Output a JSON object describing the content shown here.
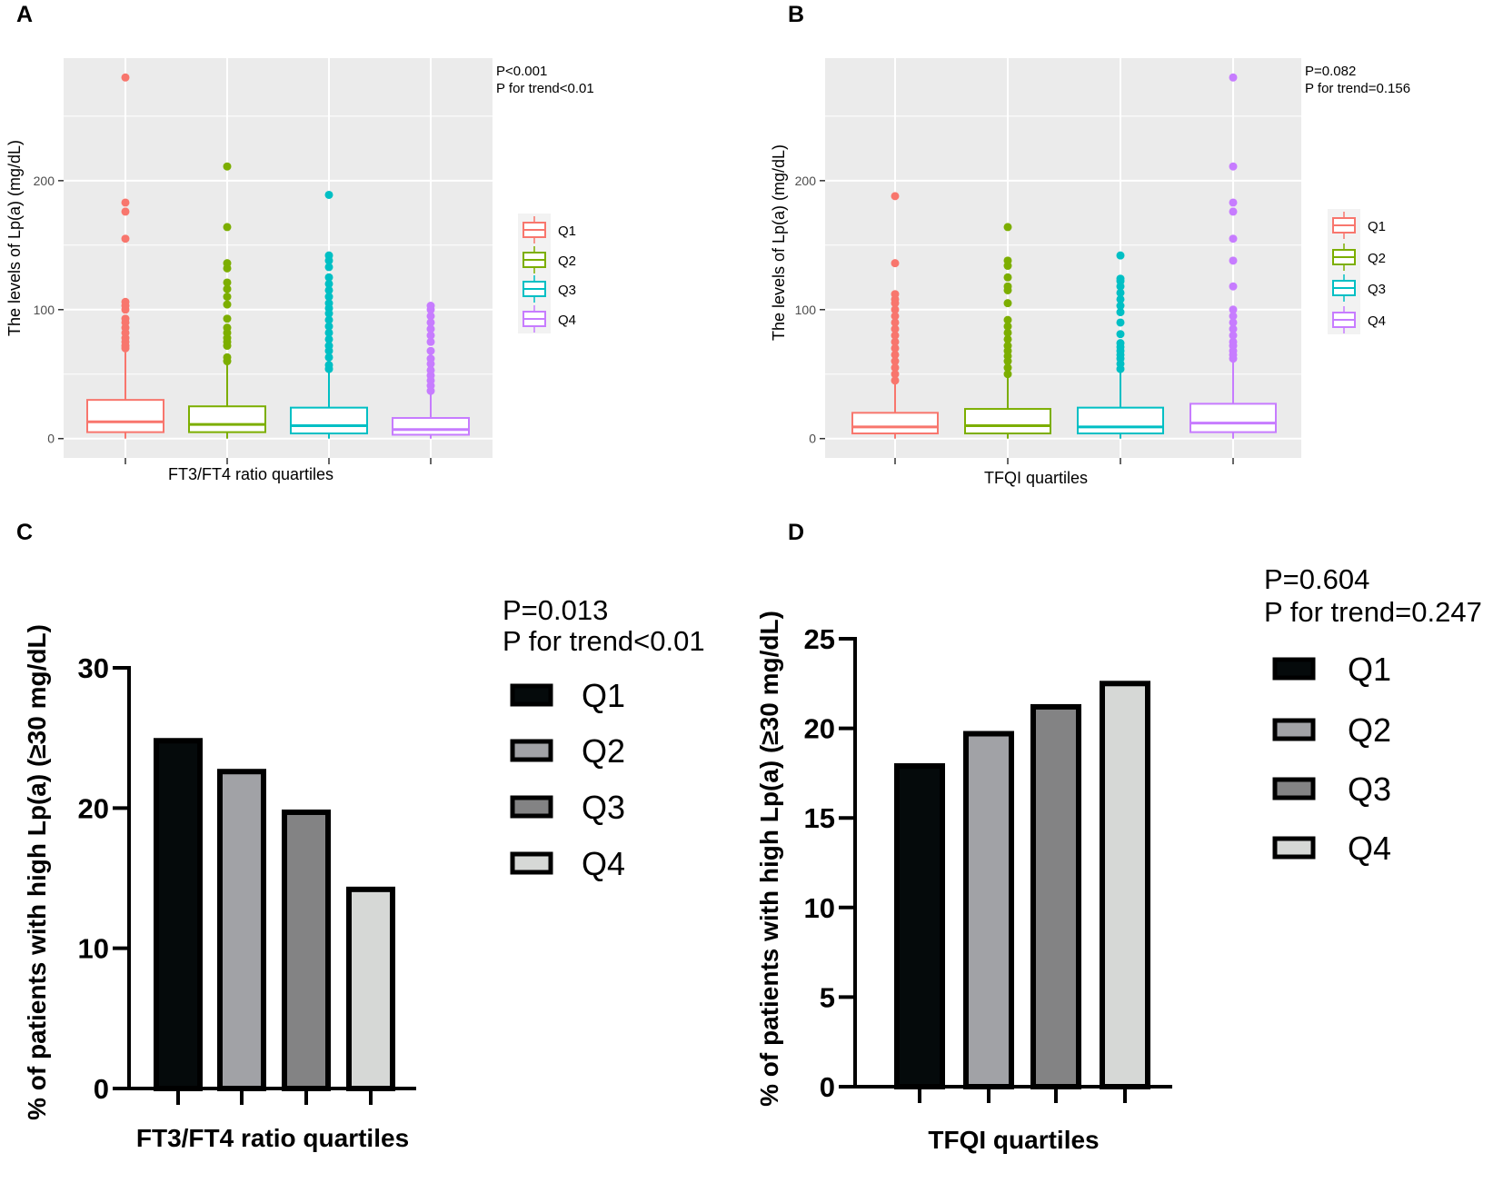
{
  "chart_data": [
    {
      "panel": "A",
      "type": "box",
      "xlabel": "FT3/FT4 ratio quartiles",
      "ylabel": "The levels of Lp(a) (mg/dL)",
      "ylim": [
        -15,
        295
      ],
      "yticks": [
        0,
        100,
        200
      ],
      "grid": true,
      "legend_position": "right",
      "stats": [
        "P<0.001",
        "P for trend<0.01"
      ],
      "series": [
        {
          "name": "Q1",
          "color": "#F8766D",
          "q1": 5,
          "median": 13,
          "q3": 30,
          "whisker_low": 0,
          "whisker_high": 67,
          "outliers": [
            70,
            72,
            75,
            78,
            82,
            86,
            90,
            93,
            100,
            103,
            106,
            155,
            176,
            183,
            280
          ]
        },
        {
          "name": "Q2",
          "color": "#7CAE00",
          "q1": 5,
          "median": 11,
          "q3": 25,
          "whisker_low": 0,
          "whisker_high": 58,
          "outliers": [
            60,
            63,
            72,
            75,
            78,
            82,
            86,
            93,
            104,
            110,
            116,
            121,
            132,
            136,
            164,
            211
          ]
        },
        {
          "name": "Q3",
          "color": "#00BFC4",
          "q1": 4,
          "median": 10,
          "q3": 24,
          "whisker_low": 0,
          "whisker_high": 52,
          "outliers": [
            54,
            57,
            63,
            68,
            72,
            77,
            82,
            87,
            92,
            97,
            101,
            105,
            110,
            115,
            120,
            125,
            133,
            138,
            142,
            189
          ]
        },
        {
          "name": "Q4",
          "color": "#C77CFF",
          "q1": 3,
          "median": 7,
          "q3": 16,
          "whisker_low": 0,
          "whisker_high": 36,
          "outliers": [
            37,
            41,
            45,
            49,
            53,
            58,
            62,
            68,
            75,
            80,
            85,
            90,
            95,
            100,
            103
          ]
        }
      ]
    },
    {
      "panel": "B",
      "type": "box",
      "xlabel": "TFQI quartiles",
      "ylabel": "The levels of Lp(a) (mg/dL)",
      "ylim": [
        -15,
        295
      ],
      "yticks": [
        0,
        100,
        200
      ],
      "grid": true,
      "legend_position": "right",
      "stats": [
        "P=0.082",
        "P for trend=0.156"
      ],
      "series": [
        {
          "name": "Q1",
          "color": "#F8766D",
          "q1": 4,
          "median": 9,
          "q3": 20,
          "whisker_low": 0,
          "whisker_high": 43,
          "outliers": [
            45,
            50,
            55,
            60,
            65,
            70,
            75,
            80,
            85,
            90,
            95,
            100,
            105,
            108,
            112,
            136,
            188
          ]
        },
        {
          "name": "Q2",
          "color": "#7CAE00",
          "q1": 4,
          "median": 10,
          "q3": 23,
          "whisker_low": 0,
          "whisker_high": 48,
          "outliers": [
            50,
            55,
            60,
            64,
            68,
            72,
            77,
            82,
            87,
            92,
            105,
            115,
            118,
            125,
            134,
            138,
            164
          ]
        },
        {
          "name": "Q3",
          "color": "#00BFC4",
          "q1": 4,
          "median": 9,
          "q3": 24,
          "whisker_low": 0,
          "whisker_high": 52,
          "outliers": [
            54,
            58,
            62,
            65,
            68,
            71,
            74,
            81,
            90,
            98,
            103,
            108,
            113,
            118,
            122,
            124,
            142
          ]
        },
        {
          "name": "Q4",
          "color": "#C77CFF",
          "q1": 5,
          "median": 12,
          "q3": 27,
          "whisker_low": 0,
          "whisker_high": 60,
          "outliers": [
            62,
            65,
            68,
            72,
            75,
            80,
            85,
            90,
            95,
            100,
            118,
            138,
            155,
            176,
            183,
            211,
            280
          ]
        }
      ]
    },
    {
      "panel": "C",
      "type": "bar",
      "categories": [
        "Q1",
        "Q2",
        "Q3",
        "Q4"
      ],
      "values": [
        24.8,
        22.6,
        19.7,
        14.2
      ],
      "colors": [
        "#050a0b",
        "#a1a2a6",
        "#838384",
        "#d6d8d6"
      ],
      "xlabel": "FT3/FT4 ratio quartiles",
      "ylabel": "% of patients with high Lp(a) (≥30 mg/dL)",
      "ylim": [
        0,
        30
      ],
      "yticks": [
        0,
        10,
        20,
        30
      ],
      "legend_position": "right",
      "stats": [
        "P=0.013",
        "P for trend<0.01"
      ]
    },
    {
      "panel": "D",
      "type": "bar",
      "categories": [
        "Q1",
        "Q2",
        "Q3",
        "Q4"
      ],
      "values": [
        17.9,
        19.7,
        21.2,
        22.5
      ],
      "colors": [
        "#050a0b",
        "#a1a2a6",
        "#838384",
        "#d6d8d6"
      ],
      "xlabel": "TFQI quartiles",
      "ylabel": "% of patients with high Lp(a) (≥30 mg/dL)",
      "ylim": [
        0,
        25
      ],
      "yticks": [
        0,
        5,
        10,
        15,
        20,
        25
      ],
      "legend_position": "right",
      "stats": [
        "P=0.604",
        "P for trend=0.247"
      ]
    }
  ]
}
